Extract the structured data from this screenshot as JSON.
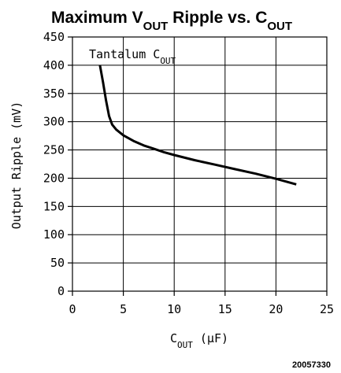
{
  "chart_data": {
    "type": "line",
    "title": {
      "parts": [
        {
          "text": "Maximum V",
          "sub": false
        },
        {
          "text": "OUT",
          "sub": true
        },
        {
          "text": " Ripple vs. C",
          "sub": false
        },
        {
          "text": "OUT",
          "sub": true
        }
      ]
    },
    "xlabel": {
      "parts": [
        {
          "text": "C",
          "sub": false
        },
        {
          "text": "OUT",
          "sub": true
        },
        {
          "text": " (μF)",
          "sub": false
        }
      ]
    },
    "ylabel": "Output Ripple (mV)",
    "annotation": {
      "parts": [
        {
          "text": "Tantalum C",
          "sub": false
        },
        {
          "text": "OUT",
          "sub": true
        }
      ]
    },
    "figure_id": "20057330",
    "xlim": [
      0,
      25
    ],
    "ylim": [
      0,
      450
    ],
    "xticks": [
      0,
      5,
      10,
      15,
      20,
      25
    ],
    "yticks": [
      0,
      50,
      100,
      150,
      200,
      250,
      300,
      350,
      400,
      450
    ],
    "xgrid": [
      5,
      10,
      15,
      20
    ],
    "ygrid": [
      50,
      100,
      150,
      200,
      250,
      300,
      350,
      400
    ],
    "series": [
      {
        "x": [
          2.7,
          3.0,
          3.3,
          3.6,
          3.9,
          4.3,
          5.0,
          6.0,
          7.0,
          8.0,
          9.0,
          10.0,
          12.0,
          14.0,
          16.0,
          18.0,
          20.0,
          22.0
        ],
        "y": [
          400,
          370,
          338,
          310,
          295,
          286,
          276,
          266,
          258,
          252,
          246,
          241,
          232,
          224,
          216,
          208,
          199,
          189
        ]
      }
    ]
  }
}
